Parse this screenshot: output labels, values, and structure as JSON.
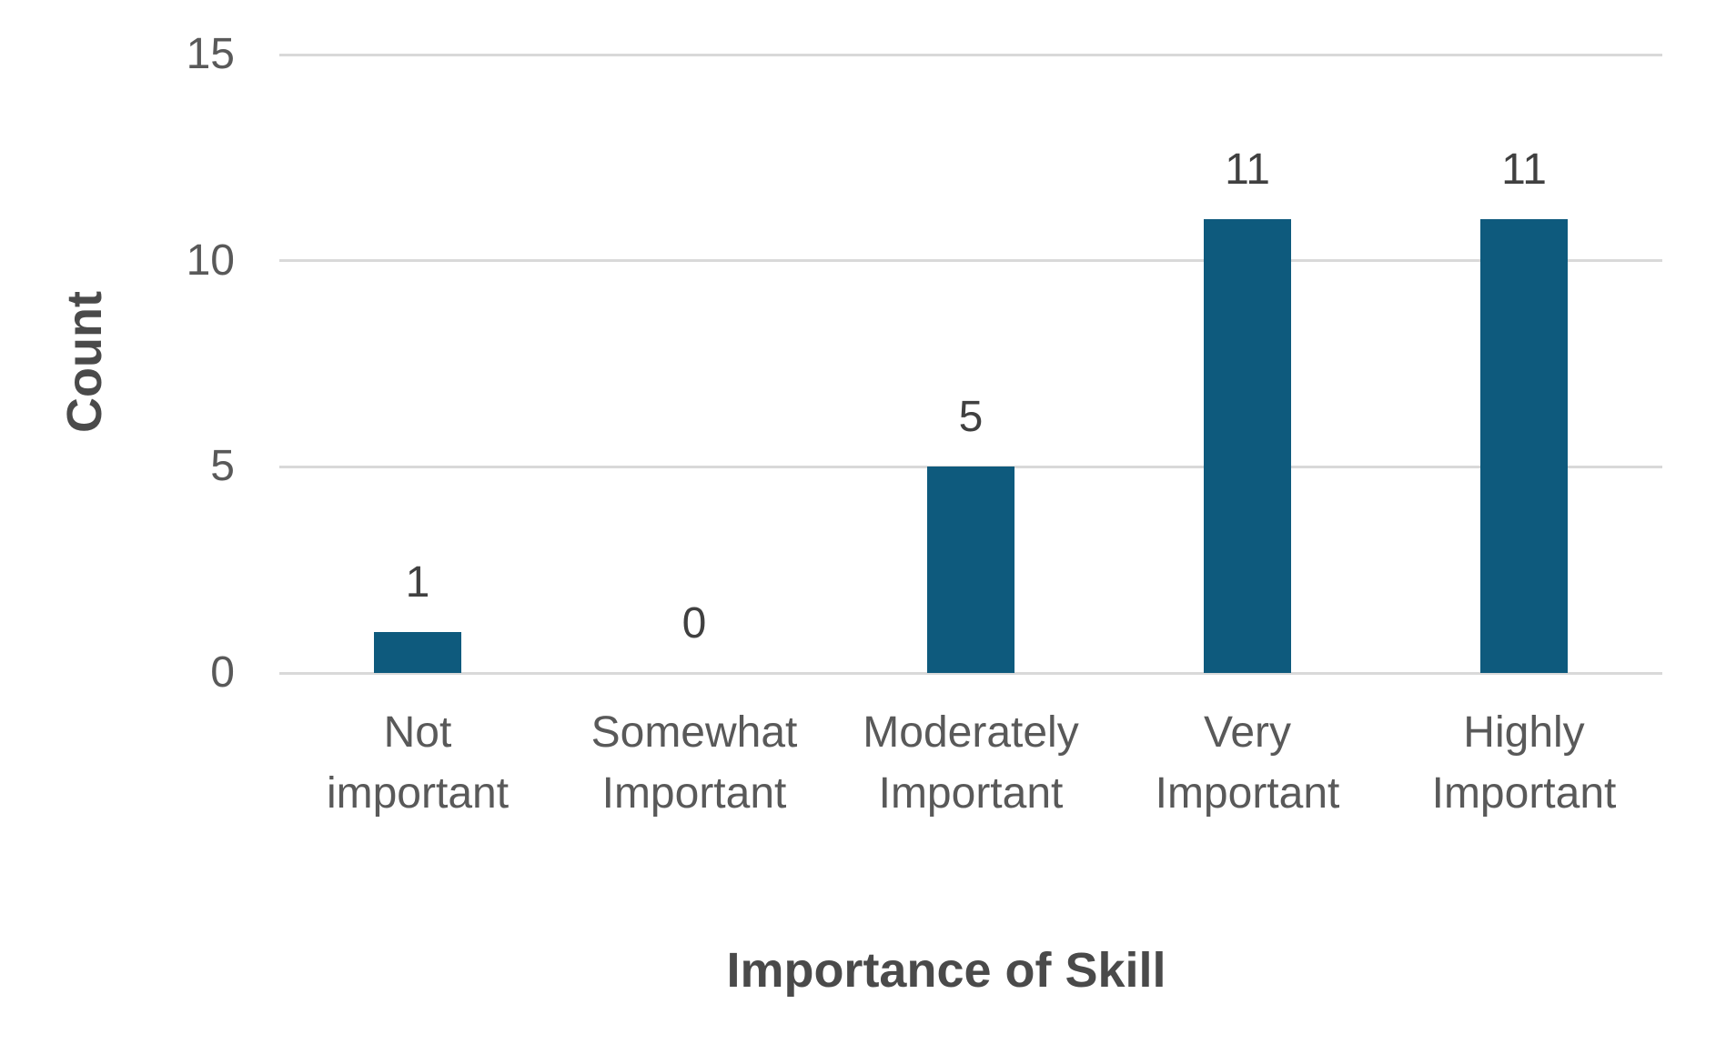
{
  "chart_data": {
    "type": "bar",
    "categories": [
      "Not important",
      "Somewhat Important",
      "Moderately Important",
      "Very Important",
      "Highly Important"
    ],
    "values": [
      1,
      0,
      5,
      11,
      11
    ],
    "data_labels": [
      "1",
      "0",
      "5",
      "11",
      "11"
    ],
    "title": "",
    "xlabel": "Importance of Skill",
    "ylabel": "Count",
    "ylim": [
      0,
      15
    ],
    "yticks": [
      0,
      5,
      10,
      15
    ],
    "grid": "horizontal-only",
    "legend": "none",
    "bar_color": "#0E5A7D"
  },
  "colors": {
    "bar": "#0E5A7D",
    "gridline": "#D9D9D9",
    "tick_text": "#595959",
    "data_label_text": "#404040",
    "axis_title_text": "#4A4A4A",
    "background": "#FFFFFF"
  }
}
